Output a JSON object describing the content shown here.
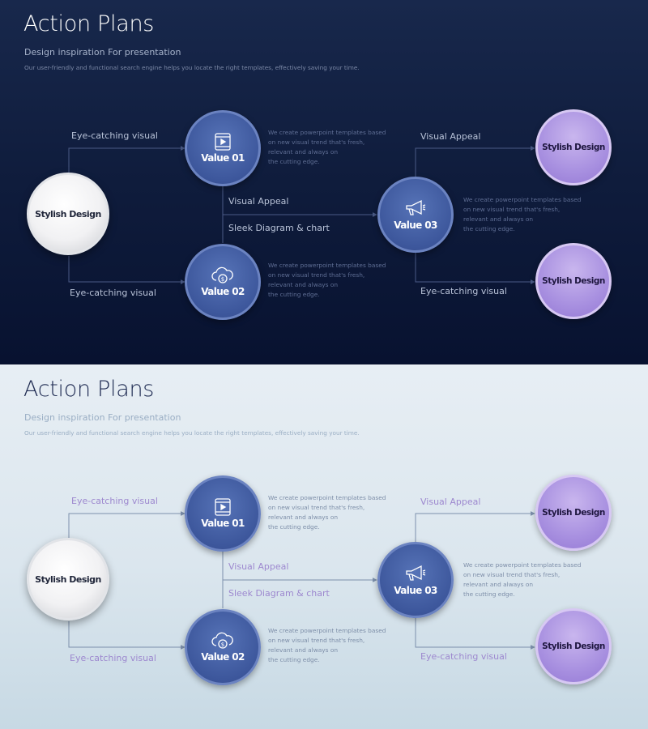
{
  "slides": [
    {
      "theme": "dark",
      "title": "Action Plans",
      "subtitle": "Design inspiration For presentation",
      "description": "Our user-friendly and functional search engine helps you locate the right templates, effectively saving your time.",
      "nodes": {
        "center": "Stylish Design",
        "value1": "Value 01",
        "value2": "Value 02",
        "value3": "Value 03",
        "outTop": "Stylish Design",
        "outBottom": "Stylish Design"
      },
      "labels": {
        "topLeft": "Eye-catching visual",
        "bottomLeft": "Eye-catching visual",
        "midAppeal": "Visual Appeal",
        "midSleek": "Sleek Diagram  & chart",
        "topRight": "Visual Appeal",
        "bottomRight": "Eye-catching visual"
      },
      "notes": {
        "value1": "We create powerpoint templates based\non new visual trend that's fresh,\nrelevant and always on\nthe cutting edge.",
        "value2": "We create powerpoint templates based\non new visual trend that's fresh,\nrelevant and always on\nthe cutting edge.",
        "value3": "We create powerpoint templates based\non new visual trend that's fresh,\nrelevant and always on\nthe cutting edge."
      },
      "icons": {
        "value1": "video-tablet-icon",
        "value2": "cloud-dollar-icon",
        "value3": "megaphone-icon"
      }
    },
    {
      "theme": "light",
      "title": "Action Plans",
      "subtitle": "Design inspiration For presentation",
      "description": "Our user-friendly and functional search engine helps you locate the right templates, effectively saving your time.",
      "nodes": {
        "center": "Stylish Design",
        "value1": "Value 01",
        "value2": "Value 02",
        "value3": "Value 03",
        "outTop": "Stylish Design",
        "outBottom": "Stylish Design"
      },
      "labels": {
        "topLeft": "Eye-catching visual",
        "bottomLeft": "Eye-catching visual",
        "midAppeal": "Visual Appeal",
        "midSleek": "Sleek Diagram  & chart",
        "topRight": "Visual Appeal",
        "bottomRight": "Eye-catching visual"
      },
      "notes": {
        "value1": "We create powerpoint templates based\non new visual trend that's fresh,\nrelevant and always on\nthe cutting edge.",
        "value2": "We create powerpoint templates based\non new visual trend that's fresh,\nrelevant and always on\nthe cutting edge.",
        "value3": "We create powerpoint templates based\non new visual trend that's fresh,\nrelevant and always on\nthe cutting edge."
      },
      "icons": {
        "value1": "video-tablet-icon",
        "value2": "cloud-dollar-icon",
        "value3": "megaphone-icon"
      }
    }
  ]
}
